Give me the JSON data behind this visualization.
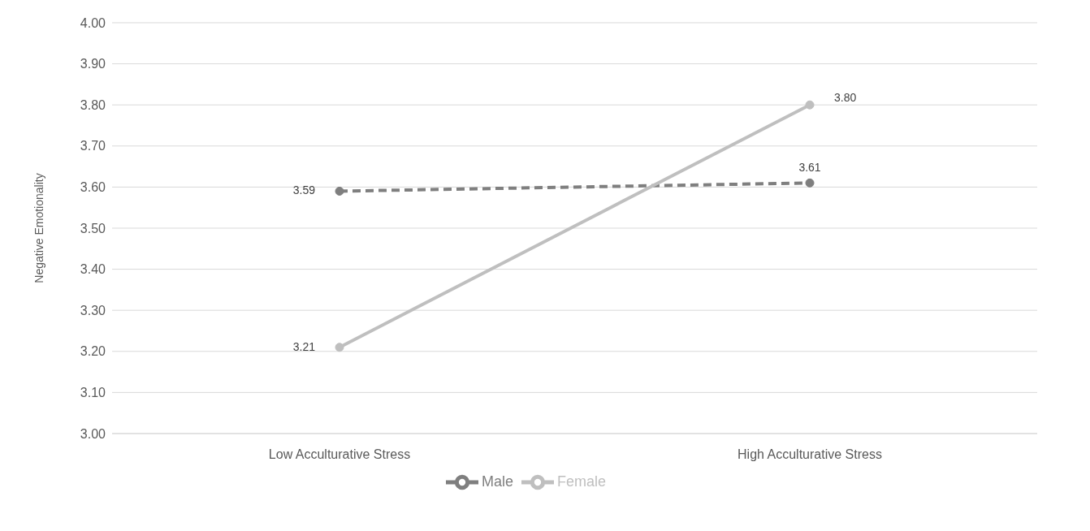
{
  "chart_data": {
    "type": "line",
    "ylabel": "Negative Emotionality",
    "categories": [
      "Low Acculturative Stress",
      "High Acculturative Stress"
    ],
    "series": [
      {
        "name": "Male",
        "color": "#7f7f7f",
        "values": [
          3.59,
          3.61
        ],
        "value_labels": [
          "3.59",
          "3.61"
        ],
        "line_style": "dashed"
      },
      {
        "name": "Female",
        "color": "#bfbfbf",
        "values": [
          3.21,
          3.8
        ],
        "value_labels": [
          "3.21",
          "3.80"
        ],
        "line_style": "solid"
      }
    ],
    "ylim": [
      3.0,
      4.0
    ],
    "yticks": [
      {
        "value": 3.0,
        "label": "3.00"
      },
      {
        "value": 3.1,
        "label": "3.10"
      },
      {
        "value": 3.2,
        "label": "3.20"
      },
      {
        "value": 3.3,
        "label": "3.30"
      },
      {
        "value": 3.4,
        "label": "3.40"
      },
      {
        "value": 3.5,
        "label": "3.50"
      },
      {
        "value": 3.6,
        "label": "3.60"
      },
      {
        "value": 3.7,
        "label": "3.70"
      },
      {
        "value": 3.8,
        "label": "3.80"
      },
      {
        "value": 3.9,
        "label": "3.90"
      },
      {
        "value": 4.0,
        "label": "4.00"
      }
    ],
    "grid": "y",
    "legend": "bottom",
    "marker": "circle"
  }
}
